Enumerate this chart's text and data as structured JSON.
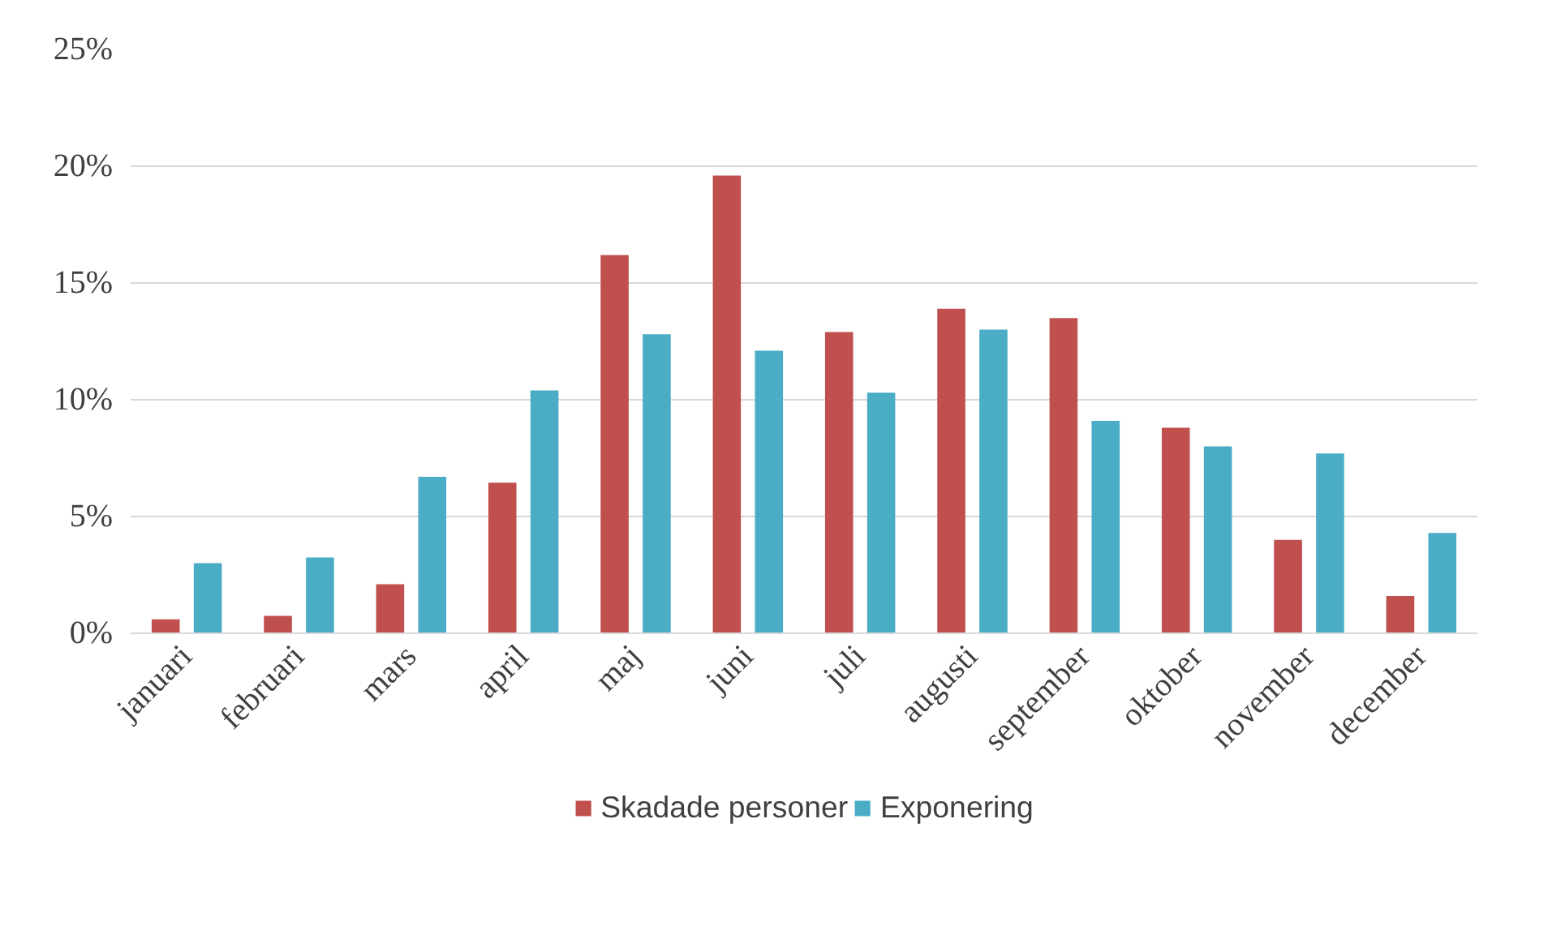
{
  "chart_data": {
    "type": "bar",
    "categories": [
      "januari",
      "februari",
      "mars",
      "april",
      "maj",
      "juni",
      "juli",
      "augusti",
      "september",
      "oktober",
      "november",
      "december"
    ],
    "series": [
      {
        "name": "Skadade personer",
        "color": "#c0504d",
        "values": [
          0.6,
          0.75,
          2.1,
          6.45,
          16.2,
          19.6,
          12.9,
          13.9,
          13.5,
          8.8,
          4.0,
          1.6
        ]
      },
      {
        "name": "Exponering",
        "color": "#4bacc6",
        "values": [
          3.0,
          3.25,
          6.7,
          10.4,
          12.8,
          12.1,
          10.3,
          13.0,
          9.1,
          8.0,
          7.7,
          4.3
        ]
      }
    ],
    "ylim": [
      0,
      25
    ],
    "yticks": [
      {
        "value": 0,
        "label": "0%"
      },
      {
        "value": 5,
        "label": "5%"
      },
      {
        "value": 10,
        "label": "10%"
      },
      {
        "value": 15,
        "label": "15%"
      },
      {
        "value": 20,
        "label": "20%"
      },
      {
        "value": 25,
        "label": "25%"
      }
    ],
    "grid": "y",
    "legend": "bottom"
  }
}
